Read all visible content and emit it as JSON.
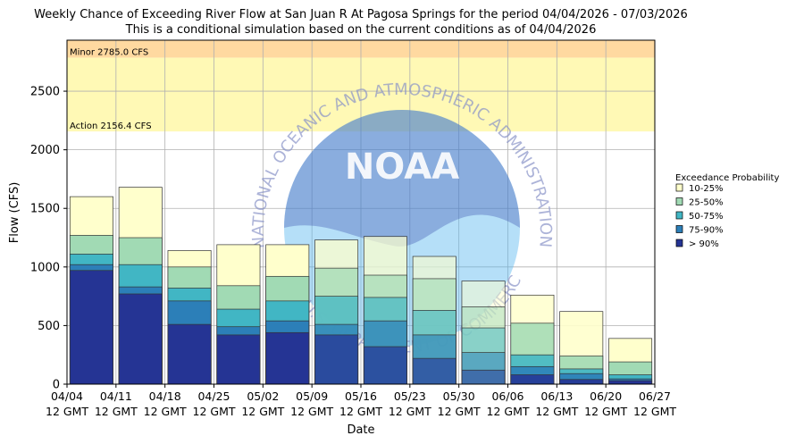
{
  "chart_data": {
    "type": "bar",
    "title": "Weekly Chance of Exceeding River Flow at San Juan R At Pagosa Springs for the period 04/04/2026 - 07/03/2026",
    "subtitle": "This is a conditional simulation based on the current conditions as of 04/04/2026",
    "xlabel": "Date",
    "ylabel": "Flow (CFS)",
    "ylim": [
      0,
      2935
    ],
    "yticks": [
      0,
      500,
      1000,
      1500,
      2000,
      2500
    ],
    "grid": true,
    "xticks": [
      {
        "date": "04/04",
        "time": "12 GMT"
      },
      {
        "date": "04/11",
        "time": "12 GMT"
      },
      {
        "date": "04/18",
        "time": "12 GMT"
      },
      {
        "date": "04/25",
        "time": "12 GMT"
      },
      {
        "date": "05/02",
        "time": "12 GMT"
      },
      {
        "date": "05/09",
        "time": "12 GMT"
      },
      {
        "date": "05/16",
        "time": "12 GMT"
      },
      {
        "date": "05/23",
        "time": "12 GMT"
      },
      {
        "date": "05/30",
        "time": "12 GMT"
      },
      {
        "date": "06/06",
        "time": "12 GMT"
      },
      {
        "date": "06/13",
        "time": "12 GMT"
      },
      {
        "date": "06/20",
        "time": "12 GMT"
      },
      {
        "date": "06/27",
        "time": "12 GMT"
      }
    ],
    "thresholds": [
      {
        "label": "Minor 2785.0 CFS",
        "value": 2785.0,
        "color": "#ffd9a0"
      },
      {
        "label": "Action 2156.4 CFS",
        "value": 2156.4,
        "color": "#fff9b5"
      }
    ],
    "legend": {
      "title": "Exceedance Probability",
      "placement": "right",
      "entries": [
        {
          "label": "10-25%",
          "color": "#ffffcc"
        },
        {
          "label": "25-50%",
          "color": "#a1dab4"
        },
        {
          "label": "50-75%",
          "color": "#41b6c4"
        },
        {
          "label": "75-90%",
          "color": "#2c7fb8"
        },
        {
          "label": "> 90%",
          "color": "#253494"
        }
      ]
    },
    "series": [
      {
        "name": "> 90%",
        "values": [
          970,
          770,
          510,
          420,
          440,
          420,
          320,
          220,
          120,
          80,
          40,
          30
        ]
      },
      {
        "name": "75-90%",
        "values": [
          1020,
          830,
          710,
          490,
          540,
          510,
          540,
          420,
          270,
          150,
          90,
          45
        ]
      },
      {
        "name": "50-75%",
        "values": [
          1110,
          1020,
          820,
          640,
          710,
          750,
          740,
          630,
          480,
          250,
          130,
          80
        ]
      },
      {
        "name": "25-50%",
        "values": [
          1270,
          1250,
          1000,
          840,
          920,
          990,
          930,
          900,
          660,
          520,
          240,
          190
        ]
      },
      {
        "name": "10-25%",
        "values": [
          1600,
          1680,
          1140,
          1190,
          1190,
          1230,
          1260,
          1090,
          880,
          760,
          620,
          390
        ]
      }
    ],
    "bar_alpha": [
      1,
      1,
      1,
      1,
      1,
      0.75,
      0.7,
      0.6,
      0.5,
      0.85,
      0.9,
      1
    ]
  },
  "watermark": {
    "arc_top": "NATIONAL OCEANIC AND ATMOSPHERIC ADMINISTRATION",
    "arc_bottom": "U.S. DEPARTMENT OF COMMERCE",
    "logo_text": "NOAA"
  }
}
